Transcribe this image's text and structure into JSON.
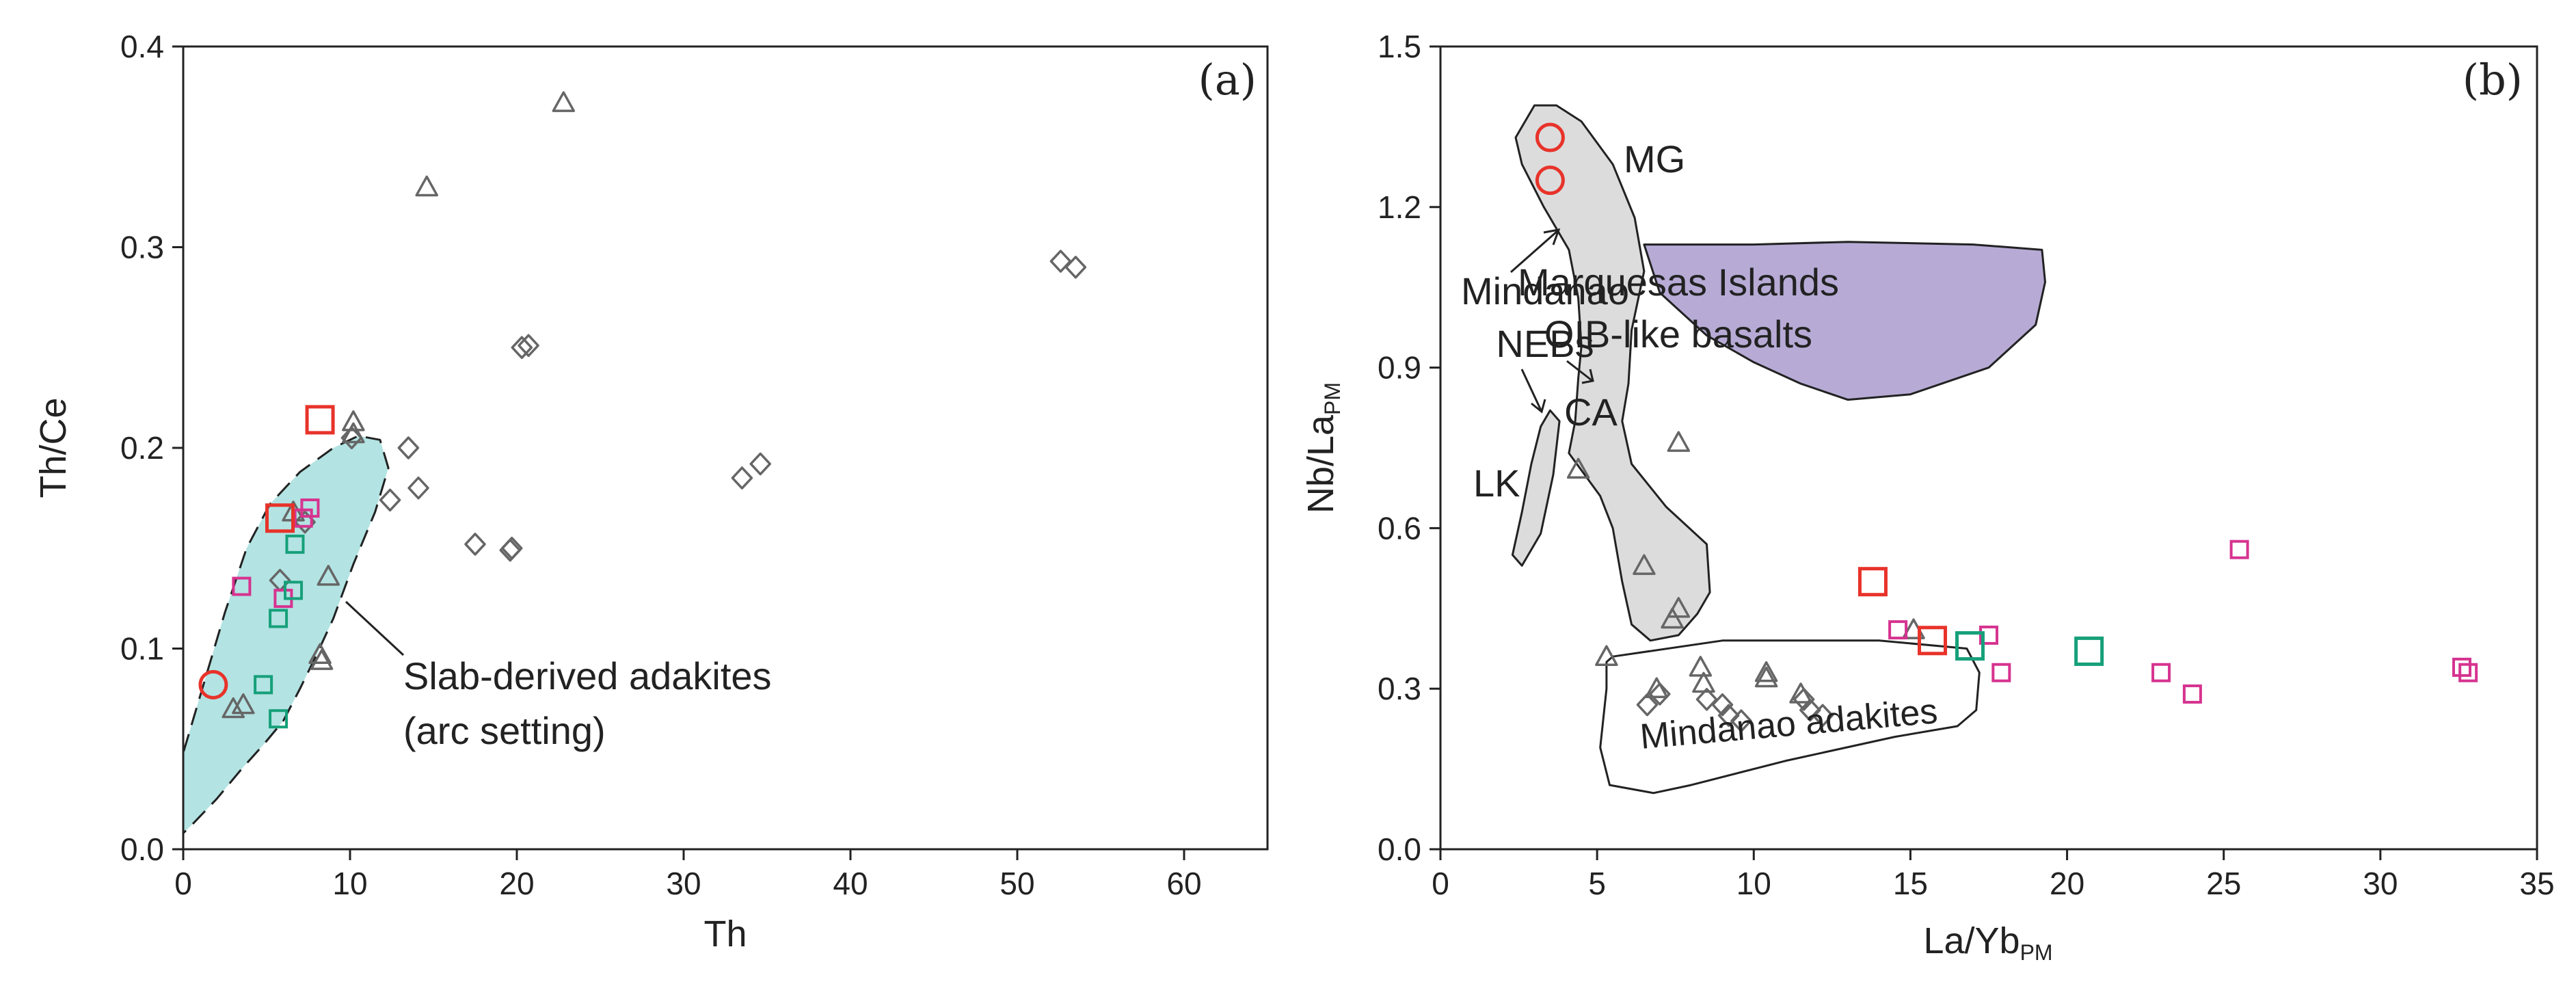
{
  "colors": {
    "red": "#e8332a",
    "magenta": "#d6338f",
    "green": "#16a07a",
    "gray": "#666666",
    "cyan_fill": "#b3e3e3",
    "purple_fill": "#b7abd6",
    "gray_fill": "#dcdcdc"
  },
  "chart_data": [
    {
      "panel": "(a)",
      "type": "scatter",
      "xlabel": "Th",
      "ylabel": "Th/Ce",
      "xlim": [
        0,
        65
      ],
      "ylim": [
        0,
        0.4
      ],
      "xticks": [
        "0",
        "10",
        "20",
        "30",
        "40",
        "50",
        "60"
      ],
      "yticks": [
        "0.0",
        "0.1",
        "0.2",
        "0.3",
        "0.4"
      ],
      "xtick_values": [
        0,
        10,
        20,
        30,
        40,
        50,
        60
      ],
      "ytick_values": [
        0,
        0.1,
        0.2,
        0.3,
        0.4
      ],
      "fields": [
        {
          "name": "Slab-derived adakites (arc setting)",
          "label_lines": [
            "Slab-derived adakites",
            "(arc setting)"
          ],
          "fill": "cyan",
          "points": [
            [
              0,
              0.008
            ],
            [
              0,
              0.048
            ],
            [
              1.5,
              0.09
            ],
            [
              2.5,
              0.118
            ],
            [
              3.8,
              0.15
            ],
            [
              5.2,
              0.172
            ],
            [
              7,
              0.188
            ],
            [
              9,
              0.2
            ],
            [
              10.5,
              0.206
            ],
            [
              11.8,
              0.204
            ],
            [
              12.3,
              0.19
            ],
            [
              11.5,
              0.168
            ],
            [
              10.2,
              0.142
            ],
            [
              9,
              0.115
            ],
            [
              8,
              0.097
            ],
            [
              7,
              0.08
            ],
            [
              6,
              0.064
            ],
            [
              4.8,
              0.052
            ],
            [
              3.5,
              0.04
            ],
            [
              2,
              0.025
            ],
            [
              0.5,
              0.012
            ]
          ]
        }
      ],
      "series": [
        {
          "name": "red circles",
          "marker": "circle",
          "color": "red",
          "points": [
            [
              1.8,
              0.082
            ]
          ]
        },
        {
          "name": "red squares",
          "marker": "square",
          "color": "red",
          "points": [
            [
              8.2,
              0.214
            ],
            [
              5.8,
              0.165
            ]
          ]
        },
        {
          "name": "magenta squares",
          "marker": "square-small",
          "color": "magenta",
          "points": [
            [
              3.5,
              0.131
            ],
            [
              7.2,
              0.165
            ],
            [
              7.6,
              0.17
            ],
            [
              6,
              0.125
            ]
          ]
        },
        {
          "name": "green squares",
          "marker": "square-small",
          "color": "green",
          "points": [
            [
              6.7,
              0.152
            ],
            [
              6.6,
              0.129
            ],
            [
              5.7,
              0.115
            ],
            [
              4.8,
              0.082
            ],
            [
              5.7,
              0.065
            ]
          ]
        },
        {
          "name": "gray triangles",
          "marker": "triangle",
          "color": "gray",
          "points": [
            [
              22.8,
              0.372
            ],
            [
              14.6,
              0.33
            ],
            [
              10.2,
              0.213
            ],
            [
              10.2,
              0.207
            ],
            [
              8.7,
              0.136
            ],
            [
              8.2,
              0.097
            ],
            [
              8.3,
              0.094
            ],
            [
              3,
              0.07
            ],
            [
              3.6,
              0.072
            ],
            [
              6.6,
              0.168
            ]
          ]
        },
        {
          "name": "gray diamonds",
          "marker": "diamond",
          "color": "gray",
          "points": [
            [
              13.5,
              0.2
            ],
            [
              12.4,
              0.174
            ],
            [
              14.1,
              0.18
            ],
            [
              17.5,
              0.152
            ],
            [
              19.6,
              0.149
            ],
            [
              19.7,
              0.15
            ],
            [
              20.3,
              0.25
            ],
            [
              20.7,
              0.251
            ],
            [
              33.5,
              0.185
            ],
            [
              34.6,
              0.192
            ],
            [
              52.6,
              0.293
            ],
            [
              53.5,
              0.29
            ],
            [
              10.1,
              0.205
            ],
            [
              5.8,
              0.134
            ],
            [
              7.3,
              0.163
            ]
          ]
        }
      ]
    },
    {
      "panel": "(b)",
      "type": "scatter",
      "xlabel": "La/Yb",
      "xlabel_sub": "PM",
      "ylabel": "Nb/La",
      "ylabel_sub": "PM",
      "xlim": [
        0,
        35
      ],
      "ylim": [
        0,
        1.5
      ],
      "xticks": [
        "0",
        "5",
        "10",
        "15",
        "20",
        "25",
        "30",
        "35"
      ],
      "yticks": [
        "0.0",
        "0.3",
        "0.6",
        "0.9",
        "1.2",
        "1.5"
      ],
      "xtick_values": [
        0,
        5,
        10,
        15,
        20,
        25,
        30,
        35
      ],
      "ytick_values": [
        0,
        0.3,
        0.6,
        0.9,
        1.2,
        1.5
      ],
      "fields": [
        {
          "name": "Marquesas Islands OIB-like basalts",
          "label_lines": [
            "Marquesas Islands",
            "OIB-like basalts"
          ],
          "fill": "purple",
          "points": [
            [
              6.5,
              1.13
            ],
            [
              7.5,
              1.13
            ],
            [
              10,
              1.13
            ],
            [
              13,
              1.135
            ],
            [
              17,
              1.13
            ],
            [
              19.2,
              1.12
            ],
            [
              19.3,
              1.06
            ],
            [
              19,
              0.98
            ],
            [
              17.5,
              0.9
            ],
            [
              15,
              0.85
            ],
            [
              13,
              0.84
            ],
            [
              11.5,
              0.87
            ],
            [
              10,
              0.91
            ],
            [
              8.5,
              0.96
            ],
            [
              7,
              1.04
            ]
          ]
        },
        {
          "name": "Mindanao NEBs / CA / MG field",
          "fill": "gray",
          "points": [
            [
              2.4,
              1.33
            ],
            [
              3,
              1.39
            ],
            [
              3.7,
              1.39
            ],
            [
              4.5,
              1.36
            ],
            [
              5.5,
              1.28
            ],
            [
              6.2,
              1.18
            ],
            [
              6.5,
              1.08
            ],
            [
              6.1,
              0.97
            ],
            [
              6,
              0.87
            ],
            [
              5.8,
              0.8
            ],
            [
              6.1,
              0.72
            ],
            [
              7.2,
              0.64
            ],
            [
              8.5,
              0.57
            ],
            [
              8.6,
              0.48
            ],
            [
              8.2,
              0.44
            ],
            [
              7.6,
              0.4
            ],
            [
              6.7,
              0.39
            ],
            [
              6.1,
              0.42
            ],
            [
              5.8,
              0.5
            ],
            [
              5.5,
              0.6
            ],
            [
              5.1,
              0.66
            ],
            [
              4.1,
              0.74
            ],
            [
              4.3,
              0.8
            ],
            [
              4.4,
              0.88
            ],
            [
              4.5,
              0.94
            ],
            [
              4.4,
              1.03
            ],
            [
              4.1,
              1.12
            ],
            [
              3.3,
              1.2
            ],
            [
              2.6,
              1.28
            ]
          ]
        },
        {
          "name": "LK",
          "fill": "gray",
          "points": [
            [
              3.5,
              0.82
            ],
            [
              3.8,
              0.8
            ],
            [
              3.6,
              0.7
            ],
            [
              3.2,
              0.59
            ],
            [
              2.6,
              0.53
            ],
            [
              2.3,
              0.55
            ],
            [
              2.6,
              0.63
            ],
            [
              2.9,
              0.72
            ],
            [
              3.2,
              0.79
            ]
          ]
        },
        {
          "name": "Mindanao adakites",
          "fill": "none",
          "points": [
            [
              5.3,
              0.35
            ],
            [
              5.5,
              0.36
            ],
            [
              9,
              0.39
            ],
            [
              14,
              0.39
            ],
            [
              16.8,
              0.375
            ],
            [
              17.2,
              0.33
            ],
            [
              17.1,
              0.26
            ],
            [
              16.5,
              0.23
            ],
            [
              14.5,
              0.21
            ],
            [
              11,
              0.165
            ],
            [
              8,
              0.12
            ],
            [
              6.8,
              0.105
            ],
            [
              5.4,
              0.12
            ],
            [
              5.1,
              0.19
            ],
            [
              5.3,
              0.3
            ]
          ]
        }
      ],
      "labels": {
        "mg": "MG",
        "mindanao": "Mindanao",
        "nebs": "NEBs",
        "ca": "CA",
        "lk": "LK",
        "mindanao_adakites": "Mindanao adakites"
      },
      "series": [
        {
          "name": "red circles",
          "marker": "circle",
          "color": "red",
          "points": [
            [
              3.5,
              1.33
            ],
            [
              3.5,
              1.25
            ]
          ]
        },
        {
          "name": "red squares",
          "marker": "square",
          "color": "red",
          "points": [
            [
              13.8,
              0.5
            ],
            [
              15.7,
              0.39
            ]
          ]
        },
        {
          "name": "green squares",
          "marker": "square",
          "color": "green",
          "points": [
            [
              16.9,
              0.38
            ],
            [
              20.7,
              0.37
            ]
          ]
        },
        {
          "name": "magenta squares",
          "marker": "square-small",
          "color": "magenta",
          "points": [
            [
              14.6,
              0.41
            ],
            [
              17.5,
              0.4
            ],
            [
              17.9,
              0.33
            ],
            [
              23,
              0.33
            ],
            [
              24,
              0.29
            ],
            [
              25.5,
              0.56
            ],
            [
              32.6,
              0.34
            ],
            [
              32.8,
              0.33
            ]
          ]
        },
        {
          "name": "gray triangles",
          "marker": "triangle",
          "color": "gray",
          "points": [
            [
              7.6,
              0.76
            ],
            [
              4.4,
              0.71
            ],
            [
              6.5,
              0.53
            ],
            [
              7.6,
              0.45
            ],
            [
              7.4,
              0.43
            ],
            [
              5.3,
              0.36
            ],
            [
              6.9,
              0.3
            ],
            [
              8.3,
              0.34
            ],
            [
              8.4,
              0.31
            ],
            [
              10.4,
              0.33
            ],
            [
              10.4,
              0.32
            ],
            [
              11.5,
              0.29
            ],
            [
              15.1,
              0.41
            ]
          ]
        },
        {
          "name": "gray diamonds",
          "marker": "diamond",
          "color": "gray",
          "points": [
            [
              6.6,
              0.27
            ],
            [
              7,
              0.29
            ],
            [
              8.5,
              0.28
            ],
            [
              9,
              0.27
            ],
            [
              9.2,
              0.25
            ],
            [
              9.6,
              0.24
            ],
            [
              11.8,
              0.26
            ],
            [
              12.2,
              0.25
            ],
            [
              11.6,
              0.28
            ]
          ]
        }
      ]
    }
  ]
}
